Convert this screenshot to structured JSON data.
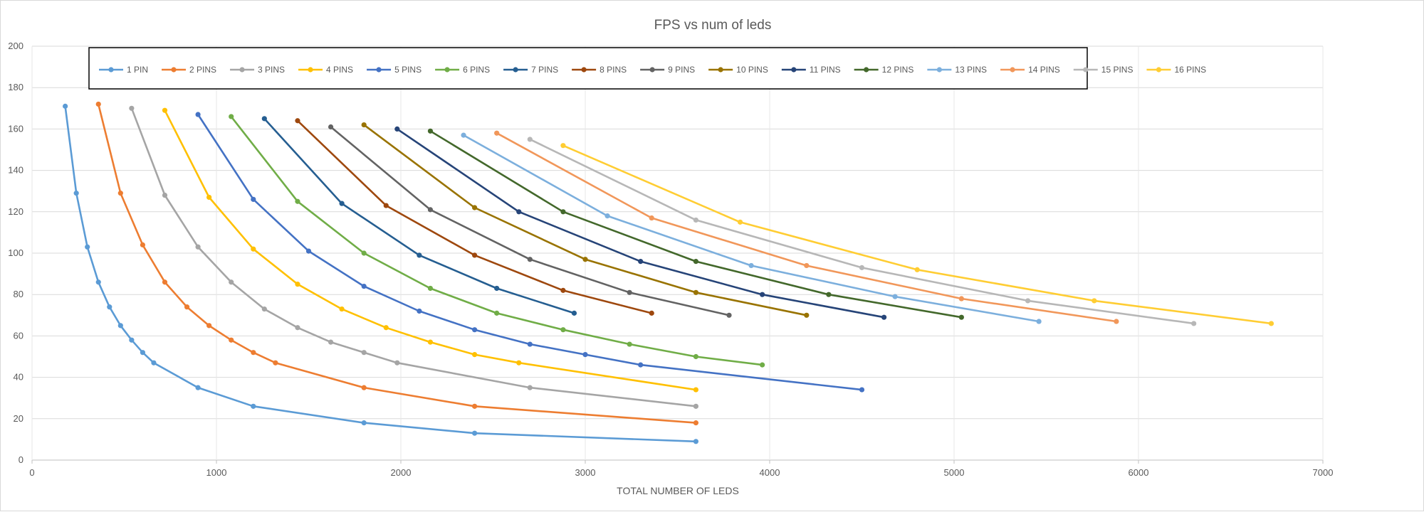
{
  "chart_data": {
    "type": "line",
    "title": "FPS  vs num of leds",
    "xlabel": "TOTAL NUMBER OF LEDS",
    "ylabel": "",
    "xlim": [
      0,
      7000
    ],
    "ylim": [
      0,
      200
    ],
    "x_ticks": [
      0,
      1000,
      2000,
      3000,
      4000,
      5000,
      6000,
      7000
    ],
    "y_ticks": [
      0,
      20,
      40,
      60,
      80,
      100,
      120,
      140,
      160,
      180,
      200
    ],
    "grid": true,
    "legend_position": "top",
    "series": [
      {
        "name": "1 PIN",
        "color": "#5B9BD5",
        "points": [
          [
            180,
            171
          ],
          [
            240,
            129
          ],
          [
            300,
            103
          ],
          [
            360,
            86
          ],
          [
            420,
            74
          ],
          [
            480,
            65
          ],
          [
            540,
            58
          ],
          [
            600,
            52
          ],
          [
            660,
            47
          ],
          [
            900,
            35
          ],
          [
            1200,
            26
          ],
          [
            1800,
            18
          ],
          [
            2400,
            13
          ],
          [
            3600,
            9
          ]
        ]
      },
      {
        "name": "2 PINS",
        "color": "#ED7D31",
        "points": [
          [
            360,
            172
          ],
          [
            480,
            129
          ],
          [
            600,
            104
          ],
          [
            720,
            86
          ],
          [
            840,
            74
          ],
          [
            960,
            65
          ],
          [
            1080,
            58
          ],
          [
            1200,
            52
          ],
          [
            1320,
            47
          ],
          [
            1800,
            35
          ],
          [
            2400,
            26
          ],
          [
            3600,
            18
          ]
        ]
      },
      {
        "name": "3 PINS",
        "color": "#A5A5A5",
        "points": [
          [
            540,
            170
          ],
          [
            720,
            128
          ],
          [
            900,
            103
          ],
          [
            1080,
            86
          ],
          [
            1260,
            73
          ],
          [
            1440,
            64
          ],
          [
            1620,
            57
          ],
          [
            1800,
            52
          ],
          [
            1980,
            47
          ],
          [
            2700,
            35
          ],
          [
            3600,
            26
          ]
        ]
      },
      {
        "name": "4 PINS",
        "color": "#FFC000",
        "points": [
          [
            720,
            169
          ],
          [
            960,
            127
          ],
          [
            1200,
            102
          ],
          [
            1440,
            85
          ],
          [
            1680,
            73
          ],
          [
            1920,
            64
          ],
          [
            2160,
            57
          ],
          [
            2400,
            51
          ],
          [
            2640,
            47
          ],
          [
            3600,
            34
          ]
        ]
      },
      {
        "name": "5 PINS",
        "color": "#4472C4",
        "points": [
          [
            900,
            167
          ],
          [
            1200,
            126
          ],
          [
            1500,
            101
          ],
          [
            1800,
            84
          ],
          [
            2100,
            72
          ],
          [
            2400,
            63
          ],
          [
            2700,
            56
          ],
          [
            3000,
            51
          ],
          [
            3300,
            46
          ],
          [
            4500,
            34
          ]
        ]
      },
      {
        "name": "6 PINS",
        "color": "#70AD47",
        "points": [
          [
            1080,
            166
          ],
          [
            1440,
            125
          ],
          [
            1800,
            100
          ],
          [
            2160,
            83
          ],
          [
            2520,
            71
          ],
          [
            2880,
            63
          ],
          [
            3240,
            56
          ],
          [
            3600,
            50
          ],
          [
            3960,
            46
          ]
        ]
      },
      {
        "name": "7 PINS",
        "color": "#255E91",
        "points": [
          [
            1260,
            165
          ],
          [
            1680,
            124
          ],
          [
            2100,
            99
          ],
          [
            2520,
            83
          ],
          [
            2940,
            71
          ]
        ]
      },
      {
        "name": "8 PINS",
        "color": "#9E480E",
        "points": [
          [
            1440,
            164
          ],
          [
            1920,
            123
          ],
          [
            2400,
            99
          ],
          [
            2880,
            82
          ],
          [
            3360,
            71
          ]
        ]
      },
      {
        "name": "9 PINS",
        "color": "#636363",
        "points": [
          [
            1620,
            161
          ],
          [
            2160,
            121
          ],
          [
            2700,
            97
          ],
          [
            3240,
            81
          ],
          [
            3780,
            70
          ]
        ]
      },
      {
        "name": "10 PINS",
        "color": "#997300",
        "points": [
          [
            1800,
            162
          ],
          [
            2400,
            122
          ],
          [
            3000,
            97
          ],
          [
            3600,
            81
          ],
          [
            4200,
            70
          ]
        ]
      },
      {
        "name": "11 PINS",
        "color": "#264478",
        "points": [
          [
            1980,
            160
          ],
          [
            2640,
            120
          ],
          [
            3300,
            96
          ],
          [
            3960,
            80
          ],
          [
            4620,
            69
          ]
        ]
      },
      {
        "name": "12 PINS",
        "color": "#43682B",
        "points": [
          [
            2160,
            159
          ],
          [
            2880,
            120
          ],
          [
            3600,
            96
          ],
          [
            4320,
            80
          ],
          [
            5040,
            69
          ]
        ]
      },
      {
        "name": "13 PINS",
        "color": "#7CAFDD",
        "points": [
          [
            2340,
            157
          ],
          [
            3120,
            118
          ],
          [
            3900,
            94
          ],
          [
            4680,
            79
          ],
          [
            5460,
            67
          ]
        ]
      },
      {
        "name": "14 PINS",
        "color": "#F1975A",
        "points": [
          [
            2520,
            158
          ],
          [
            3360,
            117
          ],
          [
            4200,
            94
          ],
          [
            5040,
            78
          ],
          [
            5880,
            67
          ]
        ]
      },
      {
        "name": "15 PINS",
        "color": "#B7B7B7",
        "points": [
          [
            2700,
            155
          ],
          [
            3600,
            116
          ],
          [
            4500,
            93
          ],
          [
            5400,
            77
          ],
          [
            6300,
            66
          ]
        ]
      },
      {
        "name": "16 PINS",
        "color": "#FFCD33",
        "points": [
          [
            2880,
            152
          ],
          [
            3840,
            115
          ],
          [
            4800,
            92
          ],
          [
            5760,
            77
          ],
          [
            6720,
            66
          ]
        ]
      }
    ]
  }
}
